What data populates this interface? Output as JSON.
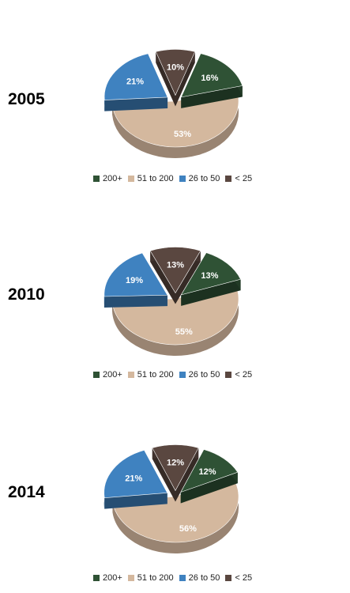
{
  "colors": {
    "200+": "#2f5235",
    "51 to 200": "#d4b89e",
    "26 to 50": "#3f82c0",
    "< 25": "#5a4740"
  },
  "chart_data": [
    {
      "type": "pie",
      "title": "2005",
      "categories": [
        "200+",
        "51 to 200",
        "26 to 50",
        "< 25"
      ],
      "values": [
        16,
        53,
        21,
        10
      ],
      "labels": [
        "16%",
        "53%",
        "21%",
        "10%"
      ],
      "legend": "bottom"
    },
    {
      "type": "pie",
      "title": "2010",
      "categories": [
        "200+",
        "51 to 200",
        "26 to 50",
        "< 25"
      ],
      "values": [
        13,
        55,
        19,
        13
      ],
      "labels": [
        "13%",
        "55%",
        "19%",
        "13%"
      ],
      "legend": "bottom"
    },
    {
      "type": "pie",
      "title": "2014",
      "categories": [
        "200+",
        "51 to 200",
        "26 to 50",
        "< 25"
      ],
      "values": [
        12,
        56,
        21,
        12
      ],
      "labels": [
        "12%",
        "56%",
        "21%",
        "12%"
      ],
      "legend": "bottom"
    }
  ]
}
